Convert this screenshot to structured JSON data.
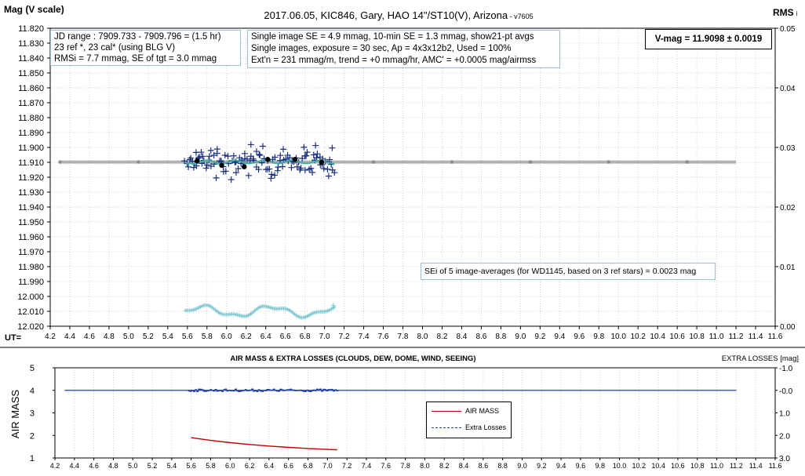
{
  "header": {
    "title": "2017.06.05,  KIC846,  Gary,  HAO 14\"/ST10(V),  Arizona",
    "version": " - v7605",
    "left_axis_title": "Mag (V scale)",
    "right_axis_title": "RMS",
    "right_axis_title_suffix": "i"
  },
  "info": {
    "jd_lines": [
      "JD range : 7909.733 - 7909.796 = (1.5 hr)",
      "23 ref *, 23 cal* (using BLG V)",
      "RMSi = 7.7 mmag, SE of tgt = 3.0 mmag"
    ],
    "se_lines": [
      "Single image SE = 4.9 mmag, 10-min SE = 1.3 mmag, show21-pt avgs",
      "Single images, exposure = 30 sec, Ap = 4x3x12b2, Used = 100%",
      "Ext'n = 231 mmag/m, trend = +0 mmag/hr, AMC' = +0.0005 mag/airmss"
    ],
    "vmag": "V-mag = 11.9098 ± 0.0019",
    "sei": "SEi of 5 image-averages (for WD1145, based on 3 ref stars) = 0.0023 mag"
  },
  "colors": {
    "single_points": "#1a2f80",
    "running_avg": "#3bb0a0",
    "averages": "#000000",
    "reference_line": "#a6a6a6",
    "rms": "#7fc7d3",
    "air_mass": "#c00000",
    "extra_losses": "#1f3fa8",
    "box_border": "#9ac2c8"
  },
  "chart_data": [
    {
      "type": "scatter",
      "title": "2017.06.05,  KIC846,  Gary,  HAO 14\"/ST10(V),  Arizona",
      "ylabel": "Mag (V scale)",
      "y2label": "RMS",
      "xlabel": "UT=",
      "xlim": [
        4.2,
        11.6
      ],
      "ylim": [
        12.02,
        11.82
      ],
      "y2lim": [
        0.0,
        0.05
      ],
      "y_ticks": [
        "11.820",
        "11.830",
        "11.840",
        "11.850",
        "11.860",
        "11.870",
        "11.880",
        "11.890",
        "11.900",
        "11.910",
        "11.920",
        "11.930",
        "11.940",
        "11.950",
        "11.960",
        "11.970",
        "11.980",
        "11.990",
        "12.000",
        "12.010",
        "12.020"
      ],
      "y2_ticks": [
        "0.05",
        "0.04",
        "0.03",
        "0.02",
        "0.01",
        "0.00"
      ],
      "x_ticks": [
        "4.2",
        "4.4",
        "4.6",
        "4.8",
        "5.0",
        "5.2",
        "5.4",
        "5.6",
        "5.8",
        "6.0",
        "6.2",
        "6.4",
        "6.6",
        "6.8",
        "7.0",
        "7.2",
        "7.4",
        "7.6",
        "7.8",
        "8.0",
        "8.2",
        "8.4",
        "8.6",
        "8.8",
        "9.0",
        "9.2",
        "9.4",
        "9.6",
        "9.8",
        "10.0",
        "10.2",
        "10.4",
        "10.6",
        "10.8",
        "11.0",
        "11.2",
        "11.4",
        "11.6"
      ],
      "reference_mag": 11.9098,
      "reference_range": [
        4.3,
        11.2
      ],
      "single_image_range": [
        5.58,
        7.1
      ],
      "single_image_mag_spread": [
        11.895,
        11.925
      ],
      "averages": [
        {
          "x": 5.7,
          "y": 11.909
        },
        {
          "x": 5.95,
          "y": 11.912
        },
        {
          "x": 6.18,
          "y": 11.913
        },
        {
          "x": 6.42,
          "y": 11.908
        },
        {
          "x": 6.7,
          "y": 11.908
        },
        {
          "x": 6.97,
          "y": 11.91
        }
      ],
      "rms_range": [
        5.58,
        7.1
      ],
      "rms_level": 0.0025
    },
    {
      "type": "line",
      "title": "AIR MASS & EXTRA LOSSES (CLOUDS, DEW, DOME, WIND, SEEING)",
      "ylabel": "AIR MASS",
      "y2label": "EXTRA LOSSES [mag]",
      "xlim": [
        4.2,
        11.6
      ],
      "ylim": [
        1,
        5
      ],
      "y2lim": [
        3.0,
        -1.0
      ],
      "y_ticks": [
        "5",
        "4",
        "3",
        "2",
        "1"
      ],
      "y2_ticks": [
        "-1.0",
        "-0.0",
        "1.0",
        "2.0",
        "3.0"
      ],
      "x_ticks": [
        "4.2",
        "4.4",
        "4.6",
        "4.8",
        "5.0",
        "5.2",
        "5.4",
        "5.6",
        "5.8",
        "6.0",
        "6.2",
        "6.4",
        "6.6",
        "6.8",
        "7.0",
        "7.2",
        "7.4",
        "7.6",
        "7.8",
        "8.0",
        "8.2",
        "8.4",
        "8.6",
        "8.8",
        "9.0",
        "9.2",
        "9.4",
        "9.6",
        "9.8",
        "10.0",
        "10.2",
        "10.4",
        "10.6",
        "10.8",
        "11.0",
        "11.2",
        "11.4",
        "11.6"
      ],
      "series": [
        {
          "name": "AIR MASS",
          "x": [
            5.6,
            5.8,
            6.0,
            6.2,
            6.4,
            6.6,
            6.8,
            7.0,
            7.1
          ],
          "y": [
            1.9,
            1.78,
            1.68,
            1.6,
            1.53,
            1.47,
            1.42,
            1.38,
            1.36
          ]
        },
        {
          "name": "Extra Losses",
          "x": [
            4.3,
            11.2
          ],
          "y": [
            0.0,
            0.0
          ],
          "dense_range": [
            5.58,
            7.1
          ]
        }
      ]
    }
  ]
}
